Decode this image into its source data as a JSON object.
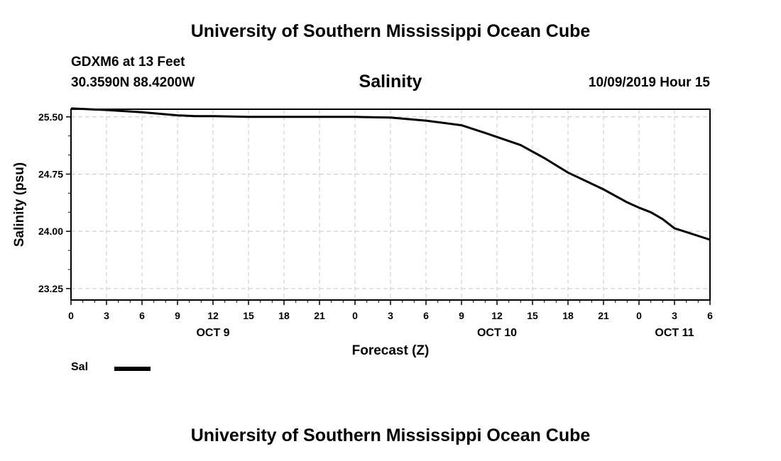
{
  "header": {
    "title": "University of Southern Mississippi Ocean Cube",
    "station": "GDXM6 at 13 Feet",
    "coordinates": "30.3590N 88.4200W",
    "chart_title": "Salinity",
    "datetime": "10/09/2019 Hour 15"
  },
  "legend": {
    "label": "Sal"
  },
  "footer": {
    "title": "University of Southern Mississippi Ocean Cube"
  },
  "chart_data": {
    "type": "line",
    "title": "Salinity",
    "xlabel": "Forecast (Z)",
    "ylabel": "Salinity (psu)",
    "xlim": [
      0,
      54
    ],
    "ylim": [
      23.1,
      25.6
    ],
    "y_ticks": [
      23.25,
      24.0,
      24.75,
      25.5
    ],
    "y_tick_labels": [
      "23.25",
      "24.00",
      "24.75",
      "25.50"
    ],
    "x_ticks": [
      0,
      3,
      6,
      9,
      12,
      15,
      18,
      21,
      24,
      27,
      30,
      33,
      36,
      39,
      42,
      45,
      48,
      51,
      54
    ],
    "x_tick_labels": [
      "0",
      "3",
      "6",
      "9",
      "12",
      "15",
      "18",
      "21",
      "0",
      "3",
      "6",
      "9",
      "12",
      "15",
      "18",
      "21",
      "0",
      "3",
      "6"
    ],
    "date_labels": [
      {
        "x": 12,
        "label": "OCT 9"
      },
      {
        "x": 36,
        "label": "OCT 10"
      },
      {
        "x": 51,
        "label": "OCT 11"
      }
    ],
    "grid": true,
    "legend_position": "bottom-left",
    "series": [
      {
        "name": "Sal",
        "color": "#000000",
        "x": [
          0,
          3,
          6,
          9,
          10.5,
          12,
          15,
          18,
          21,
          24,
          27,
          30,
          33,
          35,
          38,
          40,
          42,
          45,
          47,
          48,
          49,
          50,
          51,
          52,
          54
        ],
        "y": [
          25.61,
          25.59,
          25.56,
          25.52,
          25.51,
          25.51,
          25.5,
          25.5,
          25.5,
          25.5,
          25.49,
          25.45,
          25.39,
          25.29,
          25.13,
          24.96,
          24.77,
          24.55,
          24.38,
          24.31,
          24.25,
          24.16,
          24.04,
          23.99,
          23.89
        ]
      }
    ]
  }
}
